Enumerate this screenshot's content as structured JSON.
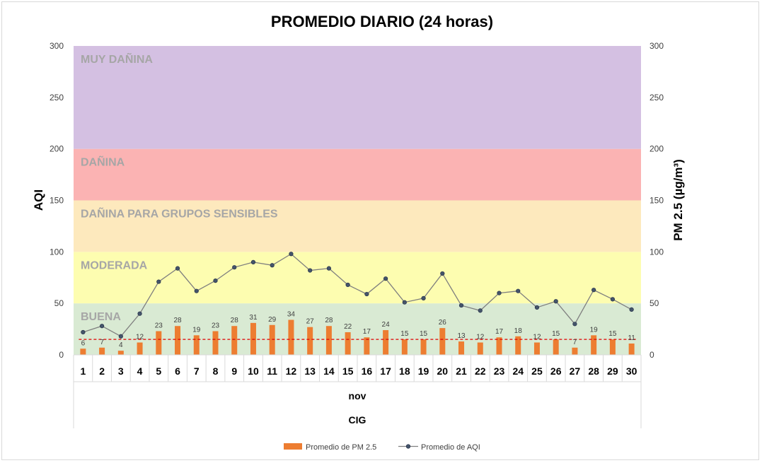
{
  "chart_data": {
    "type": "bar+line",
    "title": "PROMEDIO DIARIO (24 horas)",
    "ylabel_left": "AQI",
    "ylabel_right": "PM 2.5 (µg/m³)",
    "ylim_left": [
      0,
      300
    ],
    "ylim_right": [
      0,
      300
    ],
    "yticks": [
      0,
      50,
      100,
      150,
      200,
      250,
      300
    ],
    "categories": [
      "1",
      "2",
      "3",
      "4",
      "5",
      "6",
      "7",
      "8",
      "9",
      "10",
      "11",
      "12",
      "13",
      "14",
      "15",
      "16",
      "17",
      "18",
      "19",
      "20",
      "21",
      "22",
      "23",
      "24",
      "25",
      "26",
      "27",
      "28",
      "29",
      "30"
    ],
    "xgroup_labels": [
      "nov",
      "CIG"
    ],
    "bands": [
      {
        "label": "BUENA",
        "from": 0,
        "to": 50,
        "color": "#d9ead3"
      },
      {
        "label": "MODERADA",
        "from": 50,
        "to": 100,
        "color": "#fdfdb0"
      },
      {
        "label": "DAÑINA PARA GRUPOS SENSIBLES",
        "from": 100,
        "to": 150,
        "color": "#fde9bd"
      },
      {
        "label": "DAÑINA",
        "from": 150,
        "to": 200,
        "color": "#fbb3b3"
      },
      {
        "label": "MUY DAÑINA",
        "from": 200,
        "to": 300,
        "color": "#d4c0e2"
      }
    ],
    "series": [
      {
        "name": "Promedio de PM 2.5",
        "kind": "bar",
        "color": "#ed7d31",
        "values": [
          6,
          7,
          4,
          12,
          23,
          28,
          19,
          23,
          28,
          31,
          29,
          34,
          27,
          28,
          22,
          17,
          24,
          15,
          15,
          26,
          13,
          12,
          17,
          18,
          12,
          15,
          7,
          19,
          15,
          11
        ]
      },
      {
        "name": "Promedio de AQI",
        "kind": "line",
        "color": "#44546a",
        "values": [
          22,
          28,
          18,
          40,
          71,
          84,
          62,
          72,
          85,
          90,
          87,
          98,
          82,
          84,
          68,
          59,
          74,
          51,
          55,
          79,
          48,
          43,
          60,
          62,
          46,
          52,
          30,
          63,
          54,
          44
        ]
      }
    ],
    "reference_line": {
      "value": 15,
      "color": "#e00000",
      "style": "dashed"
    },
    "legend_position": "bottom"
  }
}
